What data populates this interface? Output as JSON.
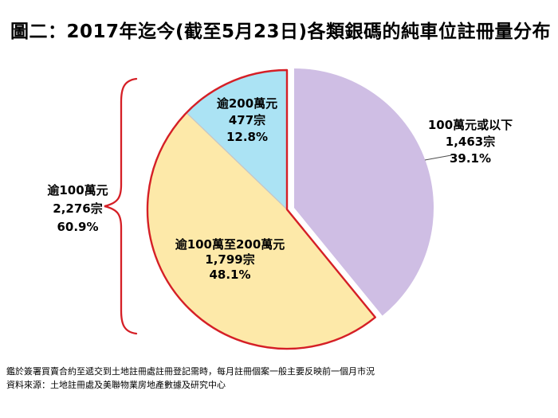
{
  "title": "圖二：2017年迄今(截至5月23日)各類銀碼的純車位註冊量分布",
  "chart_data": {
    "type": "pie",
    "title": "2017年迄今(截至5月23日)各類銀碼的純車位註冊量分布",
    "unit": "宗",
    "start_angle_deg": 0,
    "direction": "clockwise",
    "legend_position": "none",
    "slices": [
      {
        "name": "under-1m",
        "label": "100萬元或以下",
        "count_label": "1,463宗",
        "percent_label": "39.1%",
        "value": 1463,
        "percent": 39.1,
        "color": "#CFBEE4",
        "exploded": true
      },
      {
        "name": "1m-to-2m",
        "label": "逾100萬至200萬元",
        "count_label": "1,799宗",
        "percent_label": "48.1%",
        "value": 1799,
        "percent": 48.1,
        "color": "#FDE9A9",
        "exploded": false
      },
      {
        "name": "over-2m",
        "label": "逾200萬元",
        "count_label": "477宗",
        "percent_label": "12.8%",
        "value": 477,
        "percent": 12.8,
        "color": "#ABE3F4",
        "exploded": false
      }
    ],
    "bracket_group": {
      "label": "逾100萬元",
      "count_label": "2,276宗",
      "percent_label": "60.9%",
      "value": 2276,
      "percent": 60.9
    }
  },
  "colors": {
    "outline_red": "#D51F26",
    "divider": "#C6C6C6",
    "leader": "#4D4D4D",
    "background": "#FFFFFF",
    "text": "#000000"
  },
  "footnotes": [
    "鑑於簽署買賣合約至遞交到土地註冊處註冊登記需時，每月註冊個案一般主要反映前一個月市況",
    "資料來源：土地註冊處及美聯物業房地產數據及研究中心"
  ]
}
